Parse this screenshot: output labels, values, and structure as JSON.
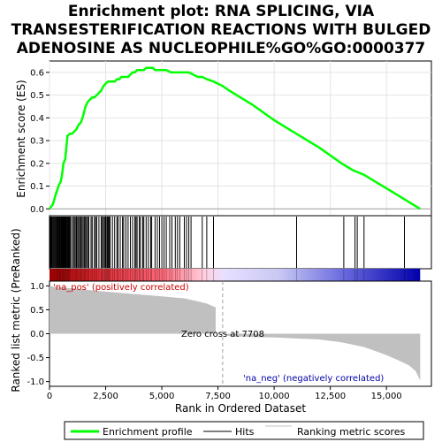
{
  "chart_data": {
    "type": "line",
    "title_lines": [
      "Enrichment plot: RNA SPLICING, VIA",
      "TRANSESTERIFICATION REACTIONS WITH BULGED",
      "ADENOSINE AS NUCLEOPHILE%GO%GO:0000377"
    ],
    "top_panel": {
      "ylabel": "Enrichment score (ES)",
      "ylim": [
        -0.03,
        0.65
      ],
      "yticks": [
        0.0,
        0.1,
        0.2,
        0.3,
        0.4,
        0.5,
        0.6
      ],
      "ytick_labels": [
        "0.0",
        "0.1",
        "0.2",
        "0.3",
        "0.4",
        "0.5",
        "0.6"
      ],
      "grid": true,
      "series": [
        {
          "name": "Enrichment profile",
          "color": "#00ff00",
          "x": [
            0,
            150,
            300,
            400,
            500,
            560,
            620,
            700,
            800,
            900,
            1000,
            1100,
            1200,
            1300,
            1400,
            1500,
            1600,
            1700,
            1800,
            1900,
            2000,
            2100,
            2200,
            2300,
            2400,
            2500,
            2600,
            2700,
            2800,
            2900,
            3000,
            3100,
            3200,
            3300,
            3400,
            3500,
            3600,
            3700,
            3800,
            3900,
            4000,
            4100,
            4200,
            4300,
            4400,
            4500,
            4600,
            4700,
            4800,
            5000,
            5200,
            5400,
            5600,
            5800,
            6000,
            6200,
            6400,
            6600,
            6800,
            7000,
            7300,
            7708,
            8000,
            9000,
            10000,
            11000,
            12000,
            13000,
            13500,
            14000,
            14500,
            15000,
            15500,
            16000,
            16500
          ],
          "y": [
            0.0,
            0.02,
            0.07,
            0.1,
            0.12,
            0.15,
            0.2,
            0.22,
            0.32,
            0.33,
            0.33,
            0.34,
            0.35,
            0.37,
            0.38,
            0.41,
            0.45,
            0.47,
            0.48,
            0.49,
            0.49,
            0.5,
            0.51,
            0.52,
            0.54,
            0.55,
            0.56,
            0.56,
            0.56,
            0.56,
            0.57,
            0.57,
            0.58,
            0.58,
            0.58,
            0.58,
            0.59,
            0.6,
            0.6,
            0.61,
            0.61,
            0.61,
            0.61,
            0.62,
            0.62,
            0.62,
            0.62,
            0.61,
            0.61,
            0.61,
            0.61,
            0.6,
            0.6,
            0.6,
            0.6,
            0.6,
            0.59,
            0.58,
            0.58,
            0.57,
            0.56,
            0.54,
            0.52,
            0.46,
            0.39,
            0.33,
            0.27,
            0.2,
            0.17,
            0.15,
            0.12,
            0.09,
            0.06,
            0.03,
            0.0
          ]
        }
      ]
    },
    "hits": {
      "name": "Hits",
      "color": "#000000",
      "positions": [
        40,
        80,
        120,
        160,
        200,
        240,
        280,
        320,
        350,
        380,
        410,
        440,
        470,
        500,
        530,
        560,
        590,
        620,
        650,
        680,
        710,
        740,
        770,
        800,
        830,
        860,
        890,
        920,
        980,
        1050,
        1100,
        1150,
        1200,
        1250,
        1300,
        1350,
        1400,
        1450,
        1500,
        1550,
        1600,
        1650,
        1700,
        1750,
        1850,
        1900,
        2000,
        2050,
        2100,
        2200,
        2300,
        2350,
        2400,
        2450,
        2500,
        2550,
        2580,
        2620,
        2660,
        2700,
        2800,
        2900,
        3000,
        3050,
        3150,
        3250,
        3300,
        3400,
        3500,
        3600,
        3700,
        3800,
        3850,
        3900,
        4000,
        4050,
        4150,
        4200,
        4300,
        4400,
        4500,
        4550,
        4700,
        4800,
        4900,
        5000,
        5100,
        5200,
        5350,
        5450,
        5600,
        5700,
        5800,
        6000,
        6100,
        6200,
        6300,
        6800,
        7000,
        7300,
        11000,
        13100,
        13600,
        13700,
        14000,
        15800
      ]
    },
    "rank_metric": {
      "name": "Ranking metric scores",
      "color": "#c0c0c0",
      "ylabel": "Ranked list metric (PreRanked)",
      "ylim": [
        -1.1,
        1.1
      ],
      "yticks": [
        1.0,
        0.5,
        0.0,
        -0.5,
        -1.0
      ],
      "ytick_labels": [
        "1.0",
        "0.5",
        "0.0",
        "-0.5",
        "-1.0"
      ],
      "x": [
        0,
        200,
        500,
        1000,
        2000,
        3000,
        4000,
        5000,
        6000,
        6500,
        7000,
        7400,
        7708,
        8000,
        9000,
        10000,
        11000,
        12000,
        12500,
        13000,
        13500,
        14000,
        14500,
        15000,
        15500,
        16000,
        16300,
        16500
      ],
      "y": [
        1.0,
        0.98,
        0.97,
        0.95,
        0.9,
        0.86,
        0.82,
        0.78,
        0.74,
        0.69,
        0.63,
        0.55,
        0.0,
        -0.05,
        -0.07,
        -0.08,
        -0.1,
        -0.12,
        -0.15,
        -0.18,
        -0.23,
        -0.28,
        -0.36,
        -0.45,
        -0.55,
        -0.66,
        -0.78,
        -0.98
      ]
    },
    "xlabel": "Rank in Ordered Dataset",
    "xlim": [
      0,
      17000
    ],
    "xticks": [
      0,
      2500,
      5000,
      7500,
      10000,
      12500,
      15000
    ],
    "xtick_labels": [
      "0",
      "2,500",
      "5,000",
      "7,500",
      "10,000",
      "12,500",
      "15,000"
    ],
    "total_rank": 16500,
    "zero_cross": 7708,
    "annotations": {
      "na_pos": "'na_pos' (positively correlated)",
      "na_neg": "'na_neg' (negatively correlated)",
      "zero_cross": "Zero cross at 7708"
    },
    "colors": {
      "pos_color": "#cc0000",
      "neg_color": "#0000aa",
      "profile": "#00ff00"
    },
    "legend": {
      "placement": "bottom",
      "items": [
        {
          "label": "Enrichment profile",
          "color": "#00ff00"
        },
        {
          "label": "Hits",
          "color": "#000000"
        },
        {
          "label": "Ranking metric scores",
          "color": "#c0c0c0"
        }
      ]
    }
  }
}
